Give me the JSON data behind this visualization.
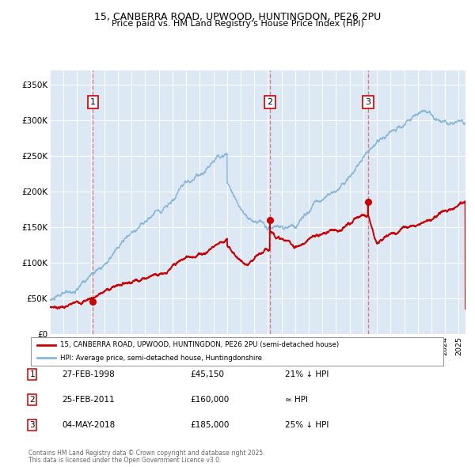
{
  "title1": "15, CANBERRA ROAD, UPWOOD, HUNTINGDON, PE26 2PU",
  "title2": "Price paid vs. HM Land Registry's House Price Index (HPI)",
  "ylabel_ticks": [
    "£0",
    "£50K",
    "£100K",
    "£150K",
    "£200K",
    "£250K",
    "£300K",
    "£350K"
  ],
  "ylabel_values": [
    0,
    50000,
    100000,
    150000,
    200000,
    250000,
    300000,
    350000
  ],
  "ylim": [
    0,
    370000
  ],
  "bg_color": "#dce9f5",
  "grid_color": "#ffffff",
  "hpi_color": "#87b8d9",
  "price_color": "#cc0000",
  "vline_color": "#e07070",
  "sale1_date": 1998.15,
  "sale1_price": 45150,
  "sale2_date": 2011.15,
  "sale2_price": 160000,
  "sale3_date": 2018.35,
  "sale3_price": 185000,
  "legend_label1": "15, CANBERRA ROAD, UPWOOD, HUNTINGDON, PE26 2PU (semi-detached house)",
  "legend_label2": "HPI: Average price, semi-detached house, Huntingdonshire",
  "table_rows": [
    {
      "num": "1",
      "date": "27-FEB-1998",
      "price": "£45,150",
      "vs": "21% ↓ HPI"
    },
    {
      "num": "2",
      "date": "25-FEB-2011",
      "price": "£160,000",
      "vs": "≈ HPI"
    },
    {
      "num": "3",
      "date": "04-MAY-2018",
      "price": "£185,000",
      "vs": "25% ↓ HPI"
    }
  ],
  "footnote1": "Contains HM Land Registry data © Crown copyright and database right 2025.",
  "footnote2": "This data is licensed under the Open Government Licence v3.0."
}
